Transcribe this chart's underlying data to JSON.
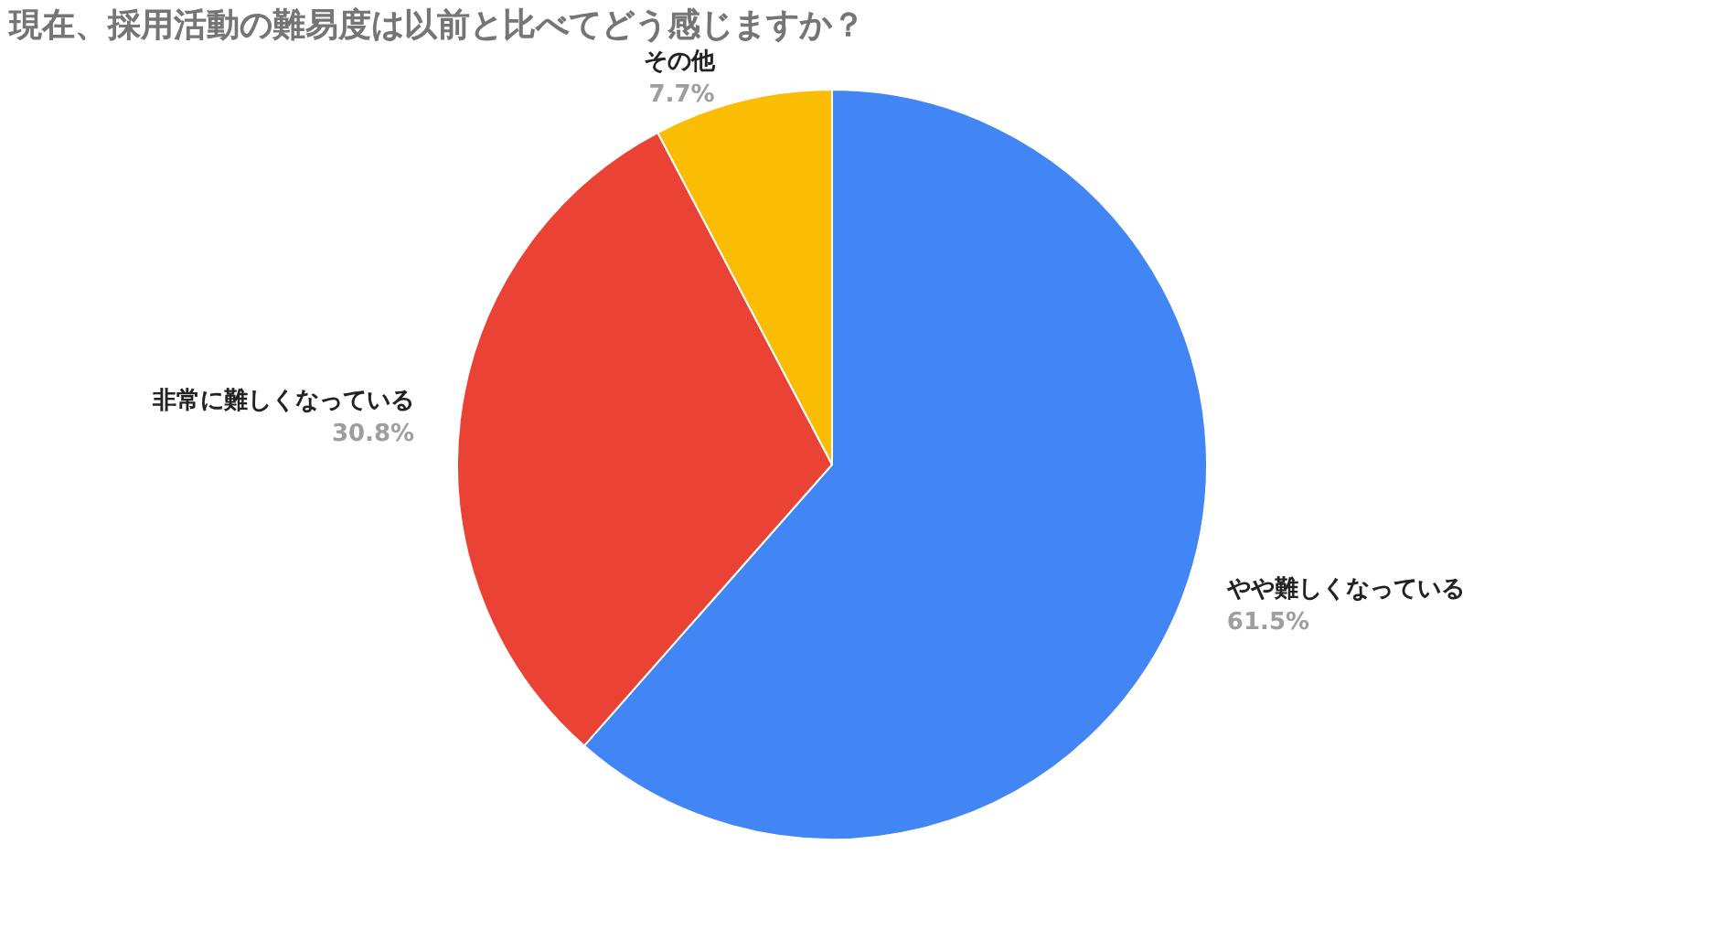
{
  "chart_data": {
    "type": "pie",
    "title": "現在、採用活動の難易度は以前と比べてどう感じますか？",
    "categories": [
      "やや難しくなっている",
      "非常に難しくなっている",
      "その他"
    ],
    "values": [
      61.5,
      30.8,
      7.7
    ],
    "colors": [
      "#4285f4",
      "#ea4335",
      "#fbbc04"
    ],
    "value_labels": [
      "61.5%",
      "30.8%",
      "7.7%"
    ],
    "legend": false
  }
}
